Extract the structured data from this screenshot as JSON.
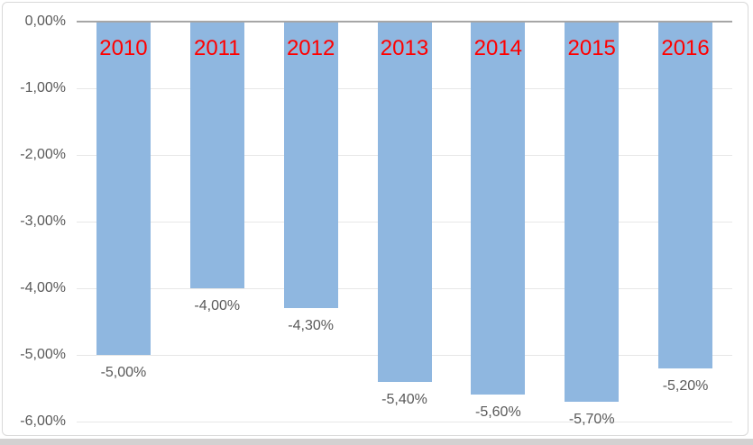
{
  "chart_data": {
    "type": "bar",
    "title": "",
    "xlabel": "",
    "ylabel": "",
    "categories": [
      "2010",
      "2011",
      "2012",
      "2013",
      "2014",
      "2015",
      "2016"
    ],
    "values": [
      -5.0,
      -4.0,
      -4.3,
      -5.4,
      -5.6,
      -5.7,
      -5.2
    ],
    "value_labels": [
      "-5,00%",
      "-4,00%",
      "-4,30%",
      "-5,40%",
      "-5,60%",
      "-5,70%",
      "-5,20%"
    ],
    "y_axis": {
      "tick_labels": [
        "0,00%",
        "-1,00%",
        "-2,00%",
        "-3,00%",
        "-4,00%",
        "-5,00%",
        "-6,00%"
      ],
      "tick_values": [
        0,
        -1,
        -2,
        -3,
        -4,
        -5,
        -6
      ],
      "range": [
        -6,
        0
      ]
    },
    "grid": true,
    "legend_position": "none",
    "colors": {
      "bar": "#8FB7E0",
      "category_label": "#FF0000",
      "value_label": "#595959",
      "tick_label": "#595959",
      "axis_line": "#A6A6A6",
      "gridline": "#E7E7E7",
      "frame_border": "#D9D9D9",
      "background": "#FFFFFF",
      "bottom_strip": "#D3D1D1"
    }
  }
}
